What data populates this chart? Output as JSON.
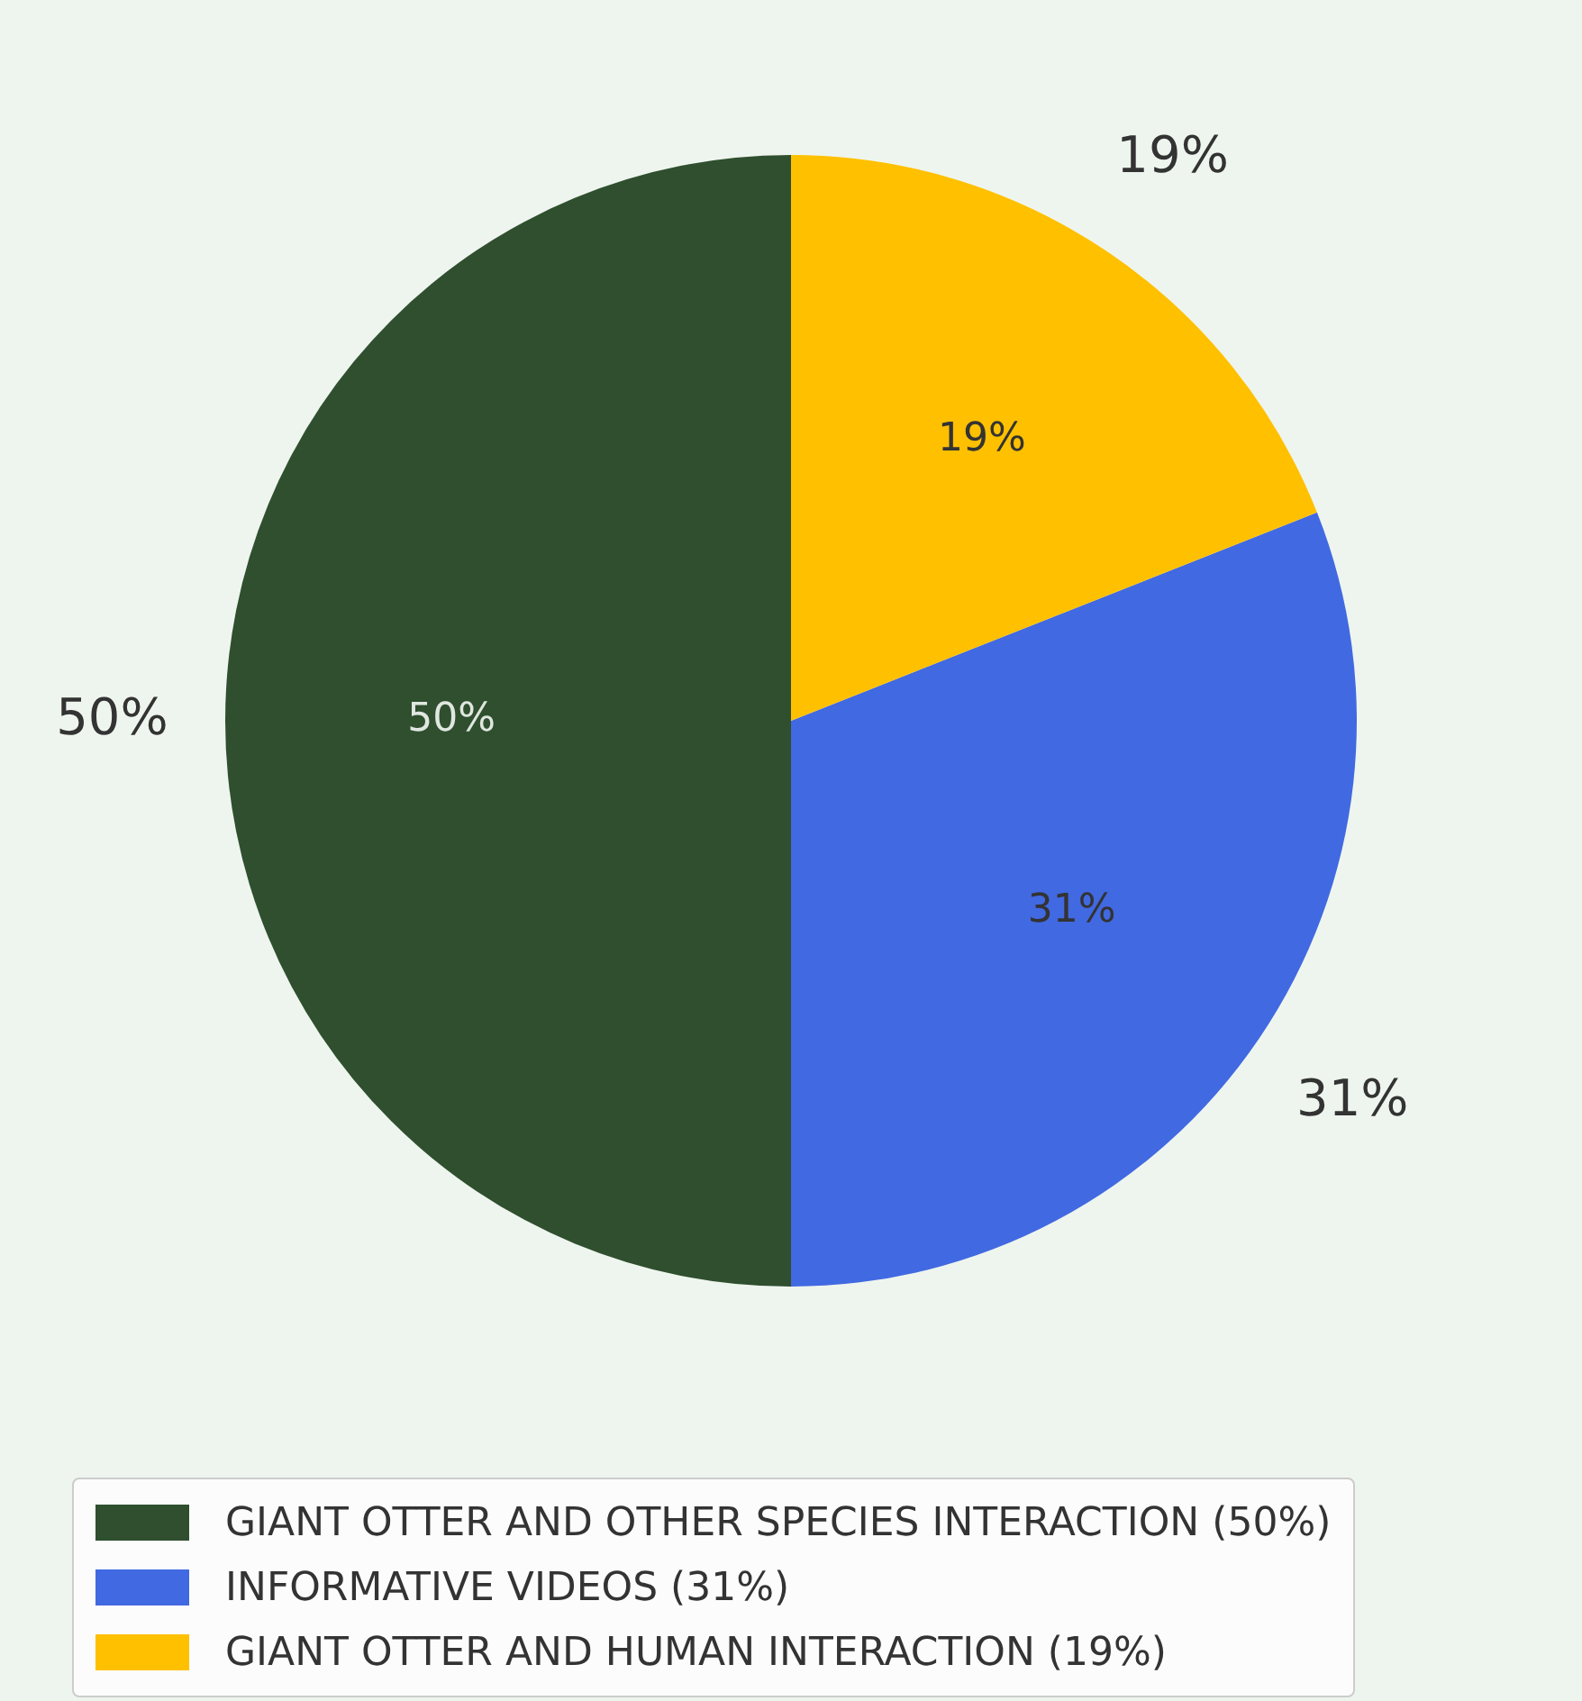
{
  "chart_data": {
    "type": "pie",
    "categories": [
      "GIANT OTTER AND OTHER SPECIES INTERACTION (50%)",
      "INFORMATIVE VIDEOS (31%)",
      "GIANT OTTER AND HUMAN INTERACTION (19%)"
    ],
    "values": [
      50,
      31,
      19
    ],
    "colors": [
      "#2f4f2f",
      "#4169e1",
      "#ffc000"
    ],
    "value_labels": [
      "50%",
      "31%",
      "19%"
    ],
    "legend": "bottom"
  }
}
